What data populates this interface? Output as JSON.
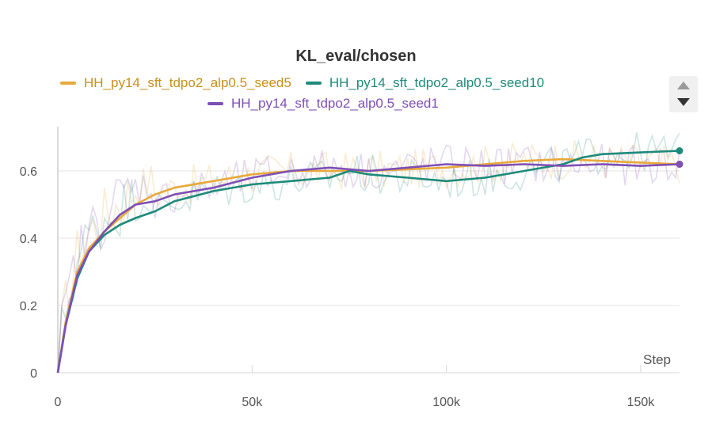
{
  "chart_data": {
    "type": "line",
    "title": "KL_eval/chosen",
    "xlabel": "Step",
    "ylabel": "",
    "xlim": [
      0,
      160000
    ],
    "ylim": [
      0,
      0.72
    ],
    "xticks": [
      0,
      50000,
      100000,
      150000
    ],
    "xtick_labels": [
      "0",
      "50k",
      "100k",
      "150k"
    ],
    "yticks": [
      0,
      0.2,
      0.4,
      0.6
    ],
    "ytick_labels": [
      "0",
      "0.2",
      "0.4",
      "0.6"
    ],
    "grid": true,
    "legend_position": "top-center",
    "series": [
      {
        "name": "HH_py14_sft_tdpo2_alp0.5_seed5",
        "color": "#E8A93A",
        "x": [
          0,
          2000,
          5000,
          8000,
          12000,
          16000,
          20000,
          25000,
          30000,
          40000,
          50000,
          60000,
          70000,
          80000,
          90000,
          100000,
          110000,
          120000,
          130000,
          140000,
          150000,
          160000
        ],
        "y": [
          0,
          0.15,
          0.3,
          0.37,
          0.42,
          0.46,
          0.5,
          0.53,
          0.55,
          0.57,
          0.59,
          0.6,
          0.6,
          0.6,
          0.605,
          0.61,
          0.62,
          0.63,
          0.635,
          0.63,
          0.625,
          0.62
        ]
      },
      {
        "name": "HH_py14_sft_tdpo2_alp0.5_seed10",
        "color": "#1E8A7A",
        "x": [
          0,
          2000,
          5000,
          8000,
          12000,
          16000,
          20000,
          25000,
          30000,
          40000,
          50000,
          60000,
          70000,
          75000,
          80000,
          90000,
          100000,
          110000,
          120000,
          130000,
          135000,
          140000,
          150000,
          160000
        ],
        "y": [
          0,
          0.14,
          0.28,
          0.36,
          0.41,
          0.44,
          0.46,
          0.48,
          0.51,
          0.54,
          0.56,
          0.57,
          0.58,
          0.6,
          0.59,
          0.58,
          0.57,
          0.58,
          0.6,
          0.62,
          0.64,
          0.65,
          0.655,
          0.66
        ]
      },
      {
        "name": "HH_py14_sft_tdpo2_alp0.5_seed1",
        "color": "#7E4FB5",
        "x": [
          0,
          2000,
          5000,
          8000,
          12000,
          16000,
          20000,
          25000,
          30000,
          40000,
          50000,
          60000,
          70000,
          80000,
          90000,
          100000,
          110000,
          120000,
          130000,
          140000,
          150000,
          160000
        ],
        "y": [
          0,
          0.14,
          0.29,
          0.36,
          0.42,
          0.47,
          0.5,
          0.51,
          0.53,
          0.55,
          0.58,
          0.6,
          0.61,
          0.6,
          0.61,
          0.62,
          0.615,
          0.62,
          0.615,
          0.62,
          0.615,
          0.62
        ]
      }
    ]
  },
  "legend": {
    "scroll_up_icon": "triangle-up-icon",
    "scroll_down_icon": "triangle-down-icon"
  }
}
